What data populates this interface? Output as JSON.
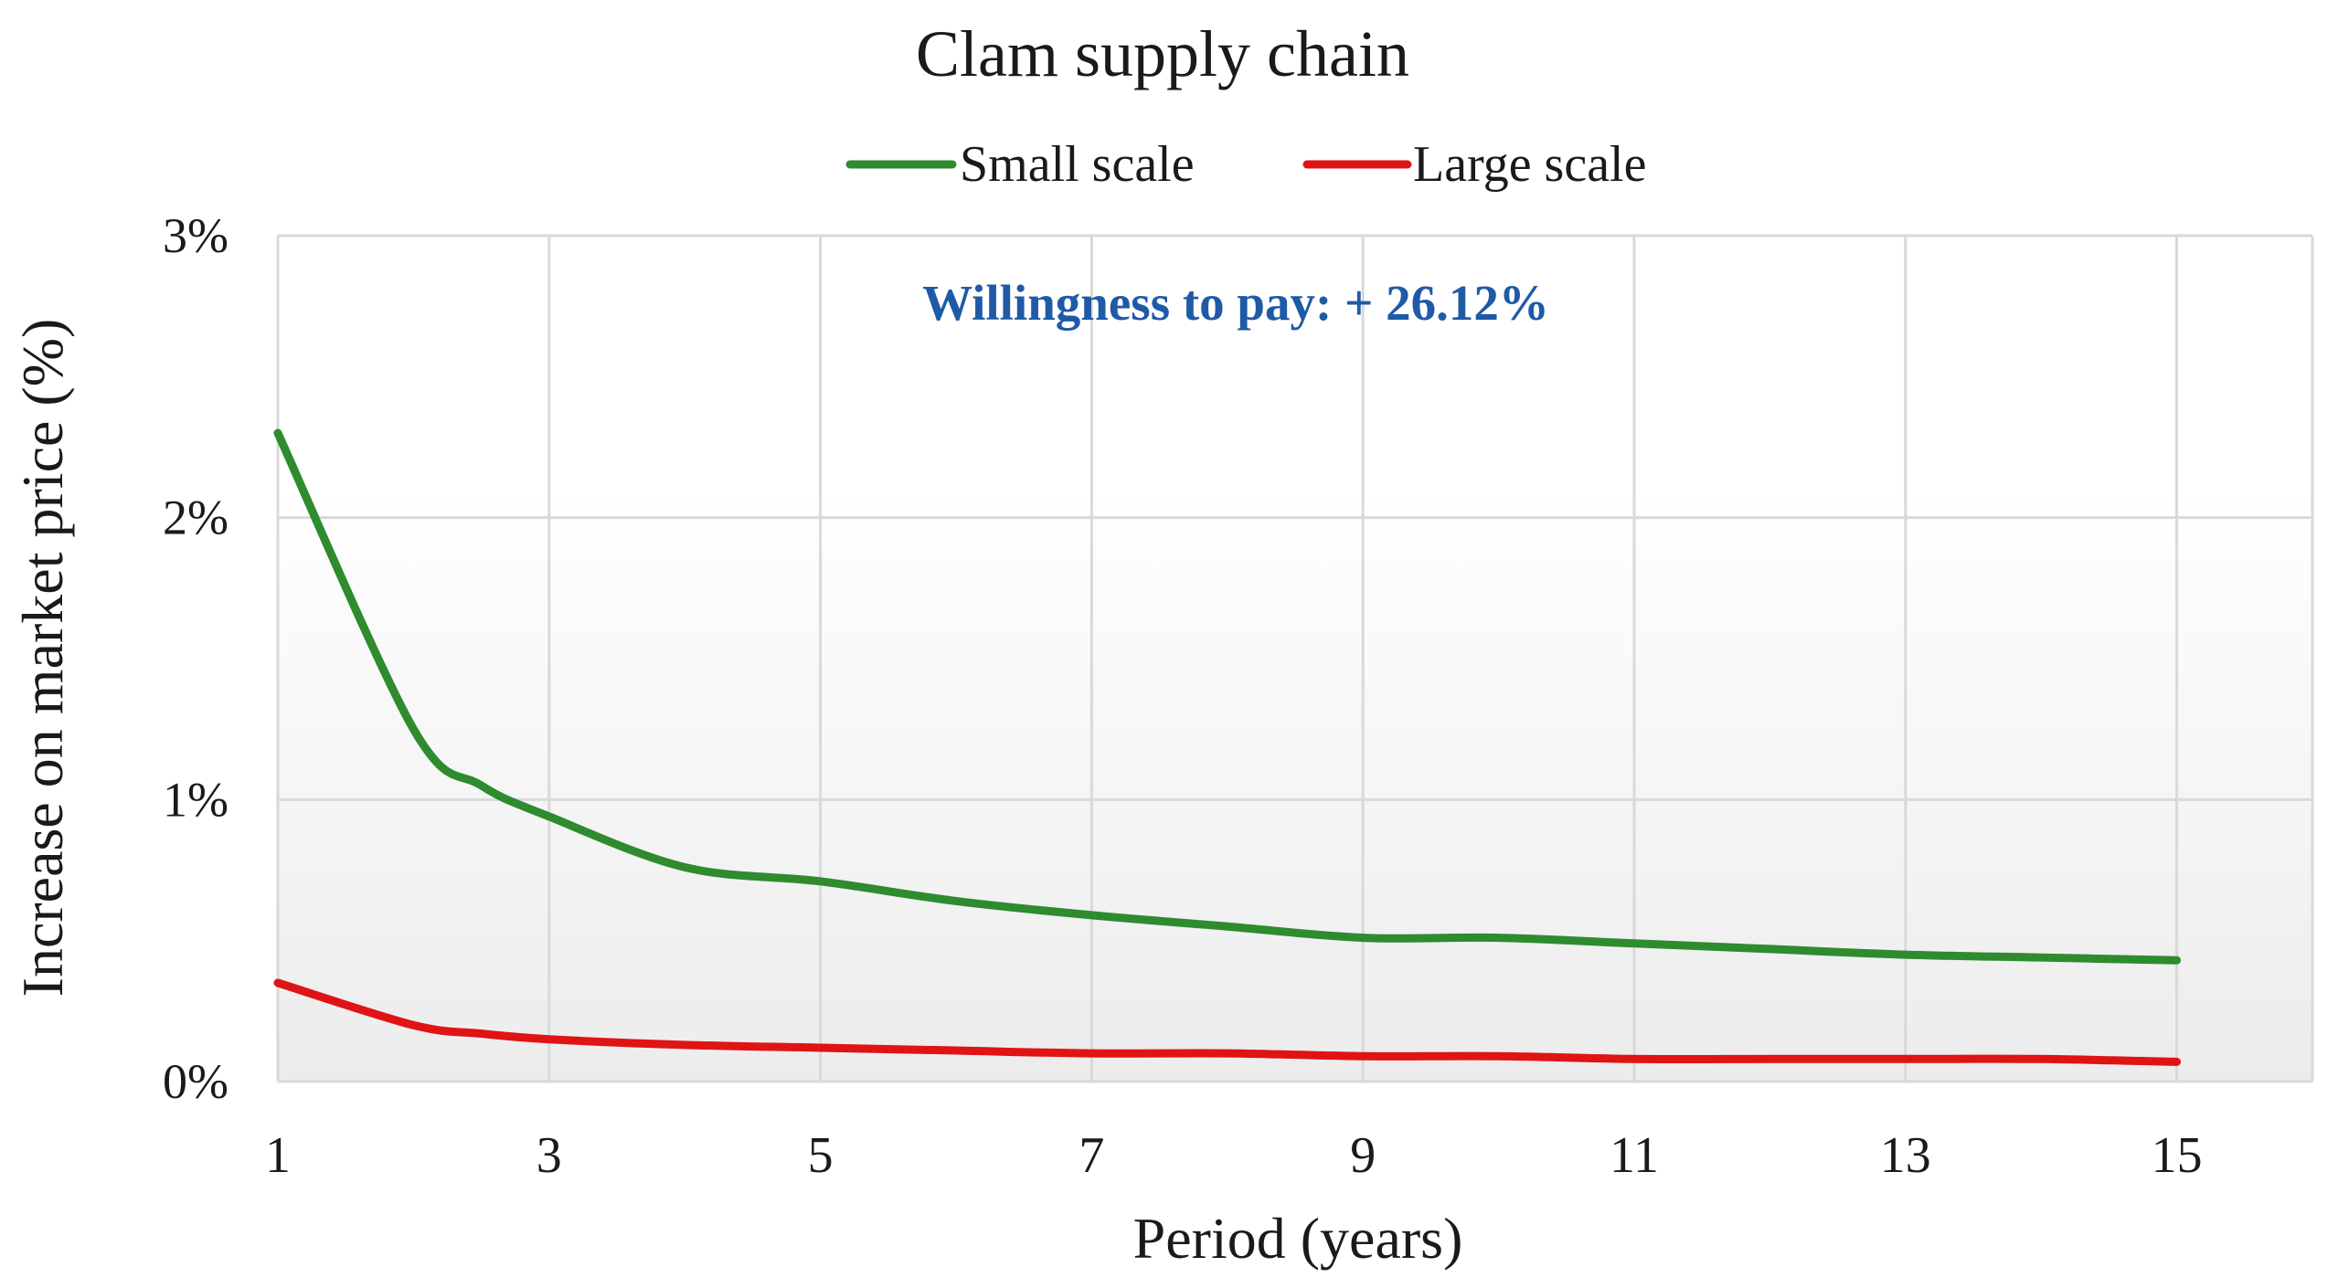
{
  "chart_data": {
    "type": "line",
    "title": "Clam supply chain",
    "xlabel": "Period (years)",
    "ylabel": "Increase on market price (%)",
    "annotation": "Willingness to pay: + 26.12%",
    "x_ticks": [
      "1",
      "3",
      "5",
      "7",
      "9",
      "11",
      "13",
      "15"
    ],
    "y_ticks": [
      "0%",
      "1%",
      "2%",
      "3%"
    ],
    "xlim": [
      1,
      16
    ],
    "ylim": [
      0,
      3
    ],
    "grid": true,
    "legend_position": "top-center",
    "colors": {
      "small_scale": "#2e8b2e",
      "large_scale": "#e01414",
      "annotation": "#1f5aa6",
      "grid": "#d9d9d9"
    },
    "x": [
      1,
      2,
      2.5,
      3,
      4,
      5,
      6,
      7,
      8,
      9,
      10,
      11,
      12,
      13,
      14,
      15
    ],
    "series": [
      {
        "name": "Small scale",
        "values": [
          2.3,
          1.25,
          1.05,
          0.94,
          0.76,
          0.71,
          0.64,
          0.59,
          0.55,
          0.51,
          0.51,
          0.49,
          0.47,
          0.45,
          0.44,
          0.43
        ]
      },
      {
        "name": "Large scale",
        "values": [
          0.35,
          0.2,
          0.17,
          0.15,
          0.13,
          0.12,
          0.11,
          0.1,
          0.1,
          0.09,
          0.09,
          0.08,
          0.08,
          0.08,
          0.08,
          0.07
        ]
      }
    ]
  }
}
